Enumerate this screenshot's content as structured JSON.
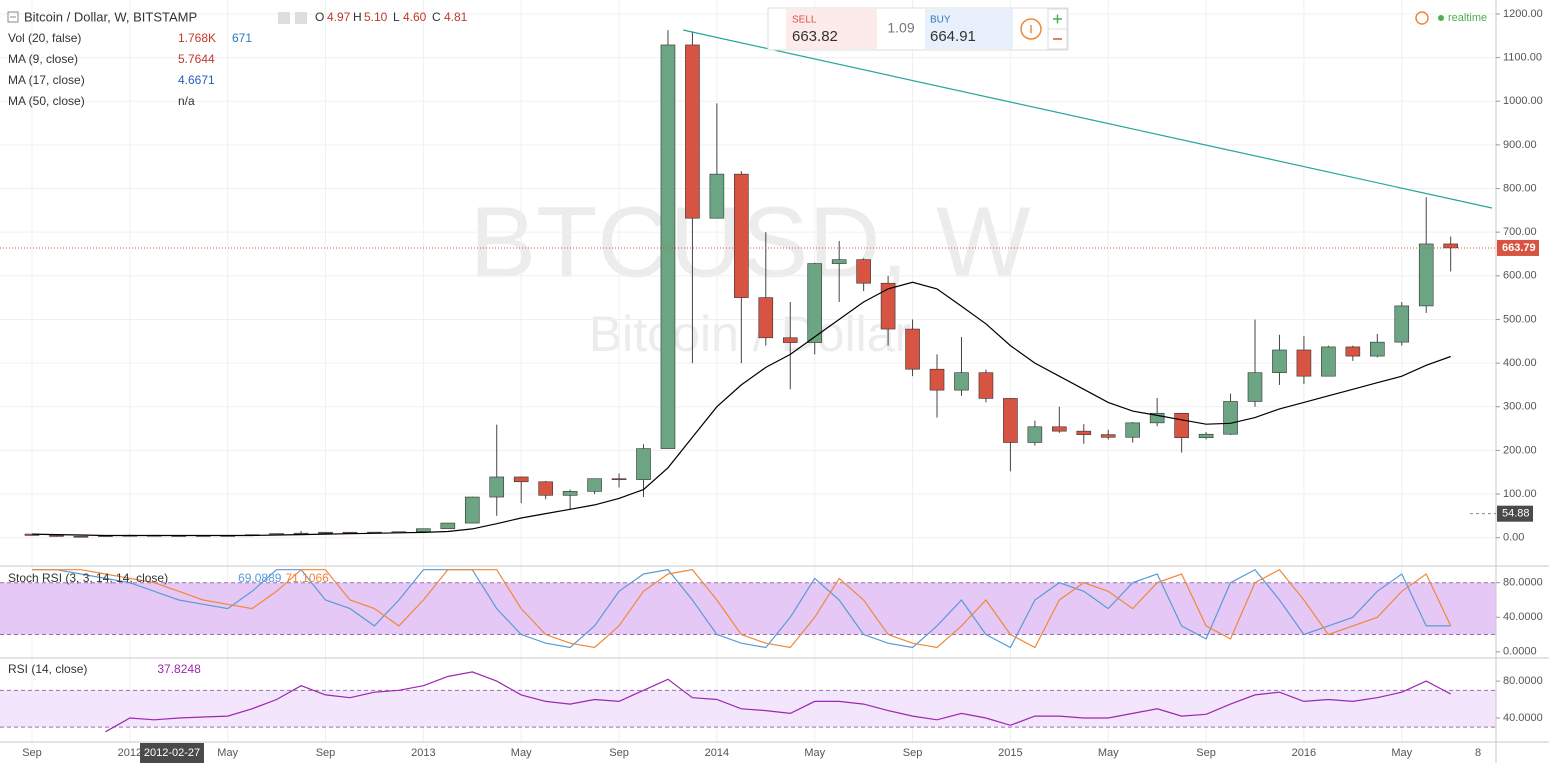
{
  "header": {
    "title": "Bitcoin / Dollar, W, BITSTAMP",
    "ohlc": [
      {
        "label": "O",
        "value": "4.97"
      },
      {
        "label": "H",
        "value": "5.10"
      },
      {
        "label": "L",
        "value": "4.60"
      },
      {
        "label": "C",
        "value": "4.81"
      }
    ],
    "indicators": [
      {
        "name": "Vol (20, false)",
        "values": [
          "1.768K",
          "671"
        ]
      },
      {
        "name": "MA (9, close)",
        "values": [
          "5.7644"
        ]
      },
      {
        "name": "MA (17, close)",
        "values": [
          "4.6671"
        ]
      },
      {
        "name": "MA (50, close)",
        "values": [
          "n/a"
        ]
      }
    ]
  },
  "trade_widget": {
    "sell_label": "SELL",
    "sell": "663.82",
    "spread": "1.09",
    "buy_label": "BUY",
    "buy": "664.91"
  },
  "status": "realtime",
  "watermark": {
    "symbol": "BTCUSD, W",
    "name": "Bitcoin / Dollar"
  },
  "chart_data": [
    {
      "type": "candlestick",
      "categories": [
        "Sep",
        null,
        null,
        null,
        "2012",
        null,
        null,
        null,
        "May",
        null,
        null,
        null,
        "Sep",
        null,
        null,
        null,
        "2013",
        null,
        null,
        null,
        "May",
        null,
        null,
        null,
        "Sep",
        null,
        null,
        null,
        "2014",
        null,
        null,
        null,
        "May",
        null,
        null,
        null,
        "Sep",
        null,
        null,
        null,
        "2015",
        null,
        null,
        null,
        "May",
        null,
        null,
        null,
        "Sep",
        null,
        null,
        null,
        "2016",
        null,
        null,
        null,
        "May",
        null,
        null
      ],
      "open": [
        8.2,
        5.1,
        3.2,
        3.0,
        4.7,
        5.5,
        4.9,
        4.9,
        5.0,
        5.1,
        6.7,
        9.3,
        10.2,
        12.4,
        11.2,
        12.6,
        13.5,
        20.4,
        33.4,
        93,
        139,
        128,
        97,
        106,
        135,
        133,
        204,
        1129,
        732,
        833,
        550,
        458,
        447,
        628,
        637,
        583,
        478,
        386,
        338,
        378,
        319,
        218,
        254,
        244,
        236,
        230,
        263,
        285,
        229,
        237,
        312,
        378,
        430,
        370,
        437,
        416,
        448,
        531,
        673
      ],
      "high": [
        8.2,
        5.3,
        3.8,
        4.8,
        7.2,
        6.0,
        5.4,
        5.2,
        5.2,
        6.7,
        9.4,
        15.4,
        12.5,
        12.8,
        12.7,
        13.8,
        20.8,
        33.4,
        94,
        259,
        140,
        130,
        110,
        135,
        147,
        214,
        1163,
        1160,
        995,
        840,
        700,
        540,
        630,
        680,
        640,
        600,
        500,
        420,
        460,
        385,
        319,
        268,
        300,
        260,
        247,
        265,
        320,
        285,
        242,
        330,
        500,
        465,
        462,
        440,
        440,
        467,
        540,
        780,
        690
      ],
      "low": [
        4.8,
        2.3,
        2.0,
        2.8,
        4.6,
        4.2,
        4.7,
        4.8,
        4.9,
        5.1,
        6.6,
        7.1,
        10.0,
        9.8,
        10.3,
        12.4,
        13.3,
        19.8,
        33,
        50,
        79,
        88,
        65,
        100,
        115,
        93,
        203,
        400,
        732,
        400,
        440,
        340,
        420,
        540,
        565,
        440,
        370,
        275,
        325,
        310,
        152,
        211,
        240,
        215,
        225,
        218,
        255,
        195,
        225,
        235,
        300,
        350,
        352,
        370,
        405,
        413,
        440,
        515,
        610
      ],
      "close": [
        5.1,
        3.2,
        3.0,
        4.7,
        5.5,
        4.9,
        4.9,
        5.0,
        5.1,
        6.7,
        9.3,
        10.2,
        12.4,
        11.2,
        12.6,
        13.5,
        20.4,
        33.4,
        93,
        139,
        128,
        97,
        106,
        135,
        133,
        204,
        1129,
        732,
        833,
        550,
        458,
        447,
        628,
        637,
        583,
        478,
        386,
        338,
        378,
        319,
        218,
        254,
        244,
        236,
        230,
        263,
        285,
        229,
        237,
        312,
        378,
        430,
        370,
        437,
        416,
        448,
        531,
        673,
        664
      ],
      "series": [
        {
          "color": "#000000",
          "values": [
            8,
            7,
            6,
            5,
            5,
            5,
            5,
            5,
            5,
            5,
            6,
            7,
            8,
            9,
            10,
            11,
            12,
            14,
            20,
            32,
            45,
            55,
            65,
            75,
            90,
            110,
            160,
            230,
            300,
            350,
            390,
            420,
            460,
            500,
            540,
            570,
            585,
            570,
            530,
            490,
            440,
            400,
            370,
            340,
            310,
            290,
            280,
            270,
            260,
            262,
            275,
            295,
            310,
            325,
            340,
            355,
            370,
            395,
            415
          ]
        }
      ],
      "ylim": [
        -65,
        1232
      ],
      "yticks": [
        {
          "value": 1200,
          "label": "1200.00"
        },
        {
          "value": 1100,
          "label": "1100.00"
        },
        {
          "value": 1000,
          "label": "1000.00"
        },
        {
          "value": 900,
          "label": "900.00"
        },
        {
          "value": 800,
          "label": "800.00"
        },
        {
          "value": 700,
          "label": "700.00"
        },
        {
          "value": 600,
          "label": "600.00"
        },
        {
          "value": 500,
          "label": "500.00"
        },
        {
          "value": 400,
          "label": "400.00"
        },
        {
          "value": 300,
          "label": "300.00"
        },
        {
          "value": 200,
          "label": "200.00"
        },
        {
          "value": 100,
          "label": "100.00"
        },
        {
          "value": 0,
          "label": "0.00"
        }
      ],
      "last_price": 663.79,
      "crosshair_price": 54.88,
      "crosshair_date": "2012-02-27",
      "axis_end_label": "8",
      "up_color": "#6ba583",
      "down_color": "#d75442",
      "grid": true
    },
    {
      "type": "line",
      "title": "Stoch RSI (3, 3, 14, 14, close)",
      "series": [
        {
          "color": "#5b9bd5",
          "readout": "69.0889",
          "values": [
            95,
            95,
            90,
            85,
            80,
            70,
            60,
            55,
            50,
            70,
            95,
            95,
            60,
            50,
            30,
            60,
            95,
            95,
            95,
            50,
            20,
            10,
            5,
            30,
            70,
            90,
            95,
            60,
            20,
            10,
            5,
            40,
            85,
            60,
            20,
            10,
            5,
            30,
            60,
            20,
            5,
            60,
            80,
            70,
            50,
            80,
            90,
            30,
            15,
            80,
            95,
            60,
            20,
            30,
            40,
            70,
            90,
            30,
            30
          ]
        },
        {
          "color": "#f0883a",
          "readout": "71.1066",
          "values": [
            95,
            95,
            95,
            90,
            85,
            80,
            70,
            60,
            55,
            50,
            70,
            95,
            95,
            60,
            50,
            30,
            60,
            95,
            95,
            95,
            50,
            20,
            10,
            5,
            30,
            70,
            90,
            95,
            60,
            20,
            10,
            5,
            40,
            85,
            60,
            20,
            10,
            5,
            30,
            60,
            20,
            5,
            60,
            80,
            70,
            50,
            80,
            90,
            30,
            15,
            80,
            95,
            60,
            20,
            30,
            40,
            70,
            90,
            30
          ]
        }
      ],
      "ylim": [
        -6,
        97
      ],
      "band": [
        20,
        80
      ],
      "band_color": "#e6c8f7",
      "yticks": [
        {
          "value": 80,
          "label": "80.0000"
        },
        {
          "value": 40,
          "label": "40.0000"
        },
        {
          "value": 0,
          "label": "0.0000"
        }
      ]
    },
    {
      "type": "line",
      "title": "RSI (14, close)",
      "series": [
        {
          "color": "#9c27b0",
          "readout": "37.8248",
          "values": [
            null,
            null,
            null,
            25,
            40,
            38,
            40,
            41,
            42,
            50,
            60,
            75,
            65,
            62,
            68,
            70,
            75,
            85,
            90,
            80,
            65,
            58,
            55,
            60,
            58,
            70,
            82,
            62,
            60,
            50,
            48,
            45,
            58,
            58,
            55,
            48,
            42,
            38,
            45,
            40,
            32,
            42,
            42,
            40,
            40,
            45,
            50,
            42,
            44,
            55,
            65,
            68,
            58,
            60,
            58,
            62,
            68,
            80,
            66
          ]
        }
      ],
      "ylim": [
        15,
        104
      ],
      "band": [
        30,
        70
      ],
      "band_color": "#f3e5fb",
      "yticks": [
        {
          "value": 80,
          "label": "80.0000"
        },
        {
          "value": 40,
          "label": "40.0000"
        }
      ]
    }
  ]
}
